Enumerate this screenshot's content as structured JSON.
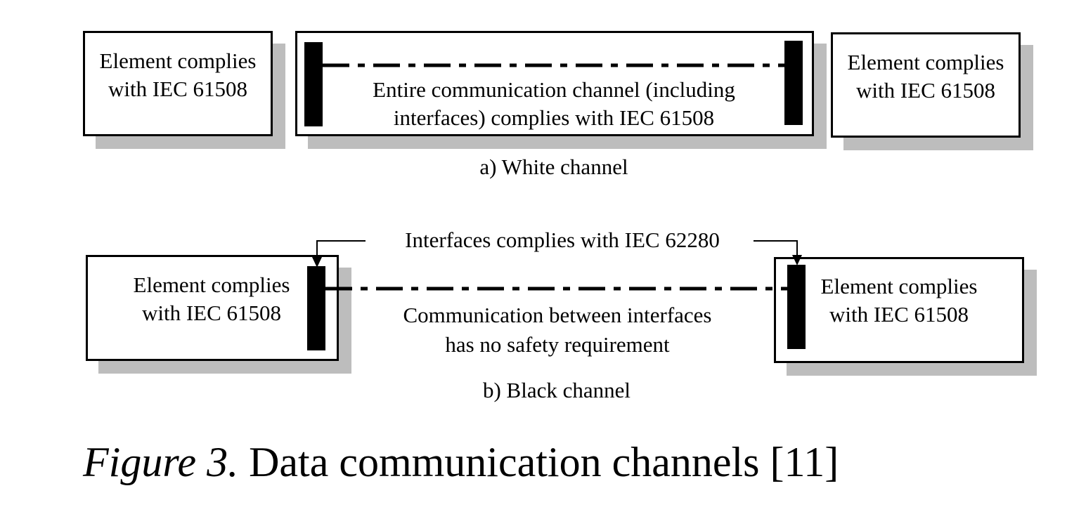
{
  "white_channel": {
    "left_element": [
      "Element complies",
      "with IEC 61508"
    ],
    "channel_text": [
      "Entire communication channel (including",
      "interfaces) complies with IEC 61508"
    ],
    "right_element": [
      "Element complies",
      "with IEC 61508"
    ],
    "caption": "a) White channel"
  },
  "black_channel": {
    "interfaces_note": "Interfaces complies with IEC 62280",
    "left_element": [
      "Element complies",
      "with IEC 61508"
    ],
    "channel_text": [
      "Communication between interfaces",
      "has no safety requirement"
    ],
    "right_element": [
      "Element complies",
      "with IEC 61508"
    ],
    "caption": "b) Black channel"
  },
  "figure": {
    "label": "Figure 3.",
    "title": "Data communication channels [11]"
  },
  "colors": {
    "border": "#000000",
    "shadow": "#bdbdbd",
    "background": "#ffffff"
  }
}
